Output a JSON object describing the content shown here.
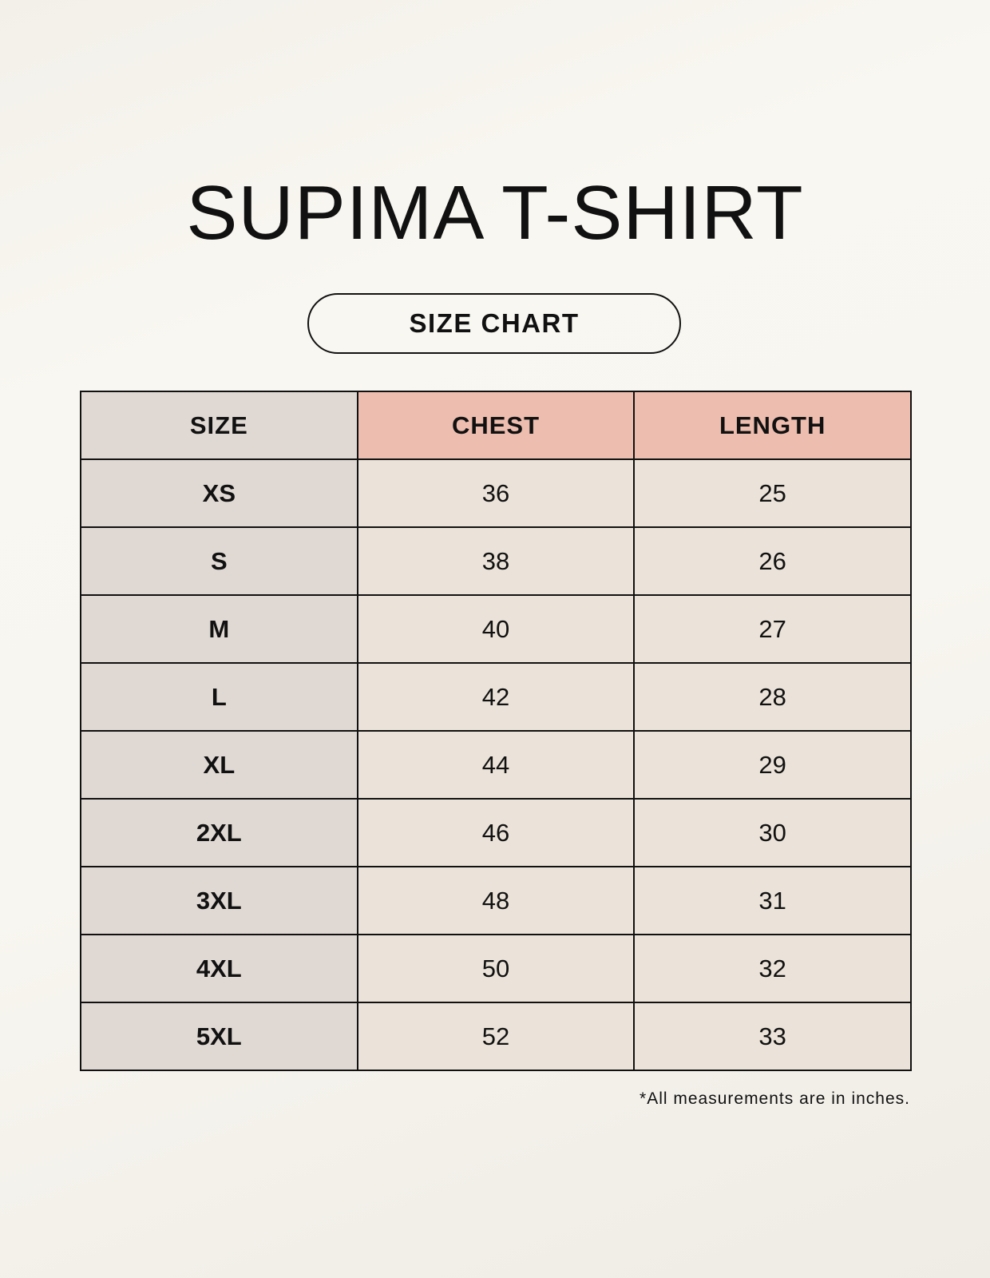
{
  "title": "SUPIMA T-SHIRT",
  "subtitle": "SIZE CHART",
  "colors": {
    "size_column": "#e0d9d3",
    "header_accent": "#edbdaf",
    "value_cells": "#ebe3d9"
  },
  "table": {
    "headers": [
      "SIZE",
      "CHEST",
      "LENGTH"
    ],
    "rows": [
      [
        "XS",
        "36",
        "25"
      ],
      [
        "S",
        "38",
        "26"
      ],
      [
        "M",
        "40",
        "27"
      ],
      [
        "L",
        "42",
        "28"
      ],
      [
        "XL",
        "44",
        "29"
      ],
      [
        "2XL",
        "46",
        "30"
      ],
      [
        "3XL",
        "48",
        "31"
      ],
      [
        "4XL",
        "50",
        "32"
      ],
      [
        "5XL",
        "52",
        "33"
      ]
    ]
  },
  "note": "*All measurements are in inches."
}
